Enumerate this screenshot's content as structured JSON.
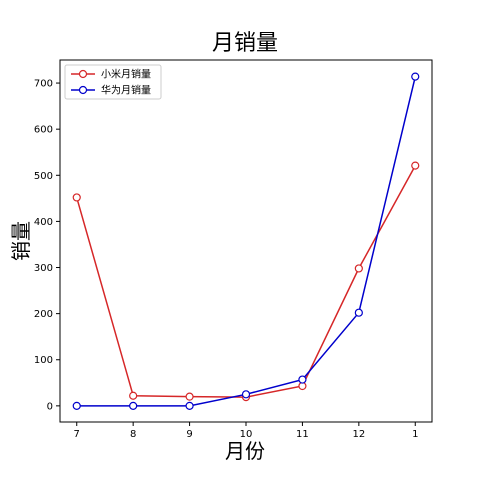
{
  "chart_data": {
    "type": "line",
    "title": "月销量",
    "xlabel": "月份",
    "ylabel": "销量",
    "categories": [
      "7",
      "8",
      "9",
      "10",
      "11",
      "12",
      "1"
    ],
    "ylim": [
      -35,
      750
    ],
    "yticks": [
      0,
      100,
      200,
      300,
      400,
      500,
      600,
      700
    ],
    "grid": false,
    "legend_position": "top-left",
    "series": [
      {
        "name": "小米月销量",
        "color": "#d62728",
        "values": [
          452,
          22,
          20,
          19,
          43,
          298,
          521
        ]
      },
      {
        "name": "华为月销量",
        "color": "#0000cc",
        "values": [
          0,
          0,
          0,
          25,
          57,
          202,
          714
        ]
      }
    ]
  }
}
